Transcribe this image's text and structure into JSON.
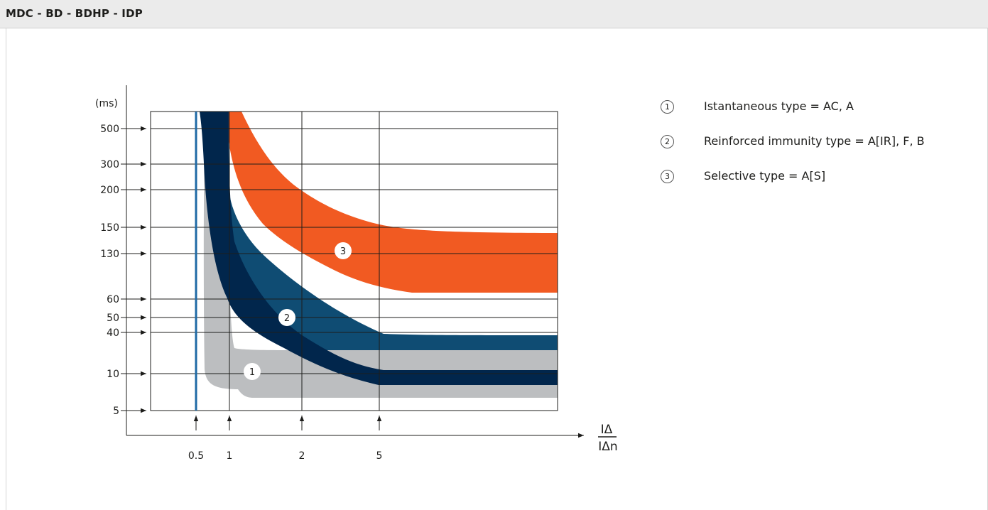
{
  "header": {
    "title": "MDC - BD - BDHP - IDP"
  },
  "legend": {
    "items": [
      {
        "num": "1",
        "label": "Istantaneous type = AC, A"
      },
      {
        "num": "2",
        "label": "Reinforced immunity type = A[IR], F, B"
      },
      {
        "num": "3",
        "label": "Selective type = A[S]"
      }
    ]
  },
  "chart_data": {
    "type": "area",
    "ylabel": "(ms)",
    "xlabel_numerator": "IΔ",
    "xlabel_denominator": "IΔn",
    "y_ticks": [
      "500",
      "300",
      "200",
      "150",
      "130",
      "60",
      "50",
      "40",
      "10",
      "5"
    ],
    "x_ticks": [
      "0.5",
      "1",
      "2",
      "5"
    ],
    "grid": true,
    "colors": {
      "band1": "#bcbec0",
      "band2_upper": "#0f4c73",
      "band2_lower": "#01264c",
      "band3": "#f15a22",
      "vline": "#1f6aa5"
    },
    "series": [
      {
        "label": "1",
        "x": [
          0.5,
          1,
          2,
          5
        ],
        "upper_ms": [
          500,
          50,
          40,
          40
        ],
        "lower_ms": [
          500,
          10,
          5,
          5
        ]
      },
      {
        "label": "2",
        "x": [
          0.5,
          1,
          2,
          5
        ],
        "upper_ms": [
          500,
          150,
          60,
          40
        ],
        "lower_ms": [
          500,
          300,
          40,
          10
        ]
      },
      {
        "label": "3",
        "x": [
          1,
          2,
          5
        ],
        "upper_ms": [
          300,
          150,
          150
        ],
        "lower_ms": [
          130,
          130,
          60
        ]
      }
    ]
  }
}
